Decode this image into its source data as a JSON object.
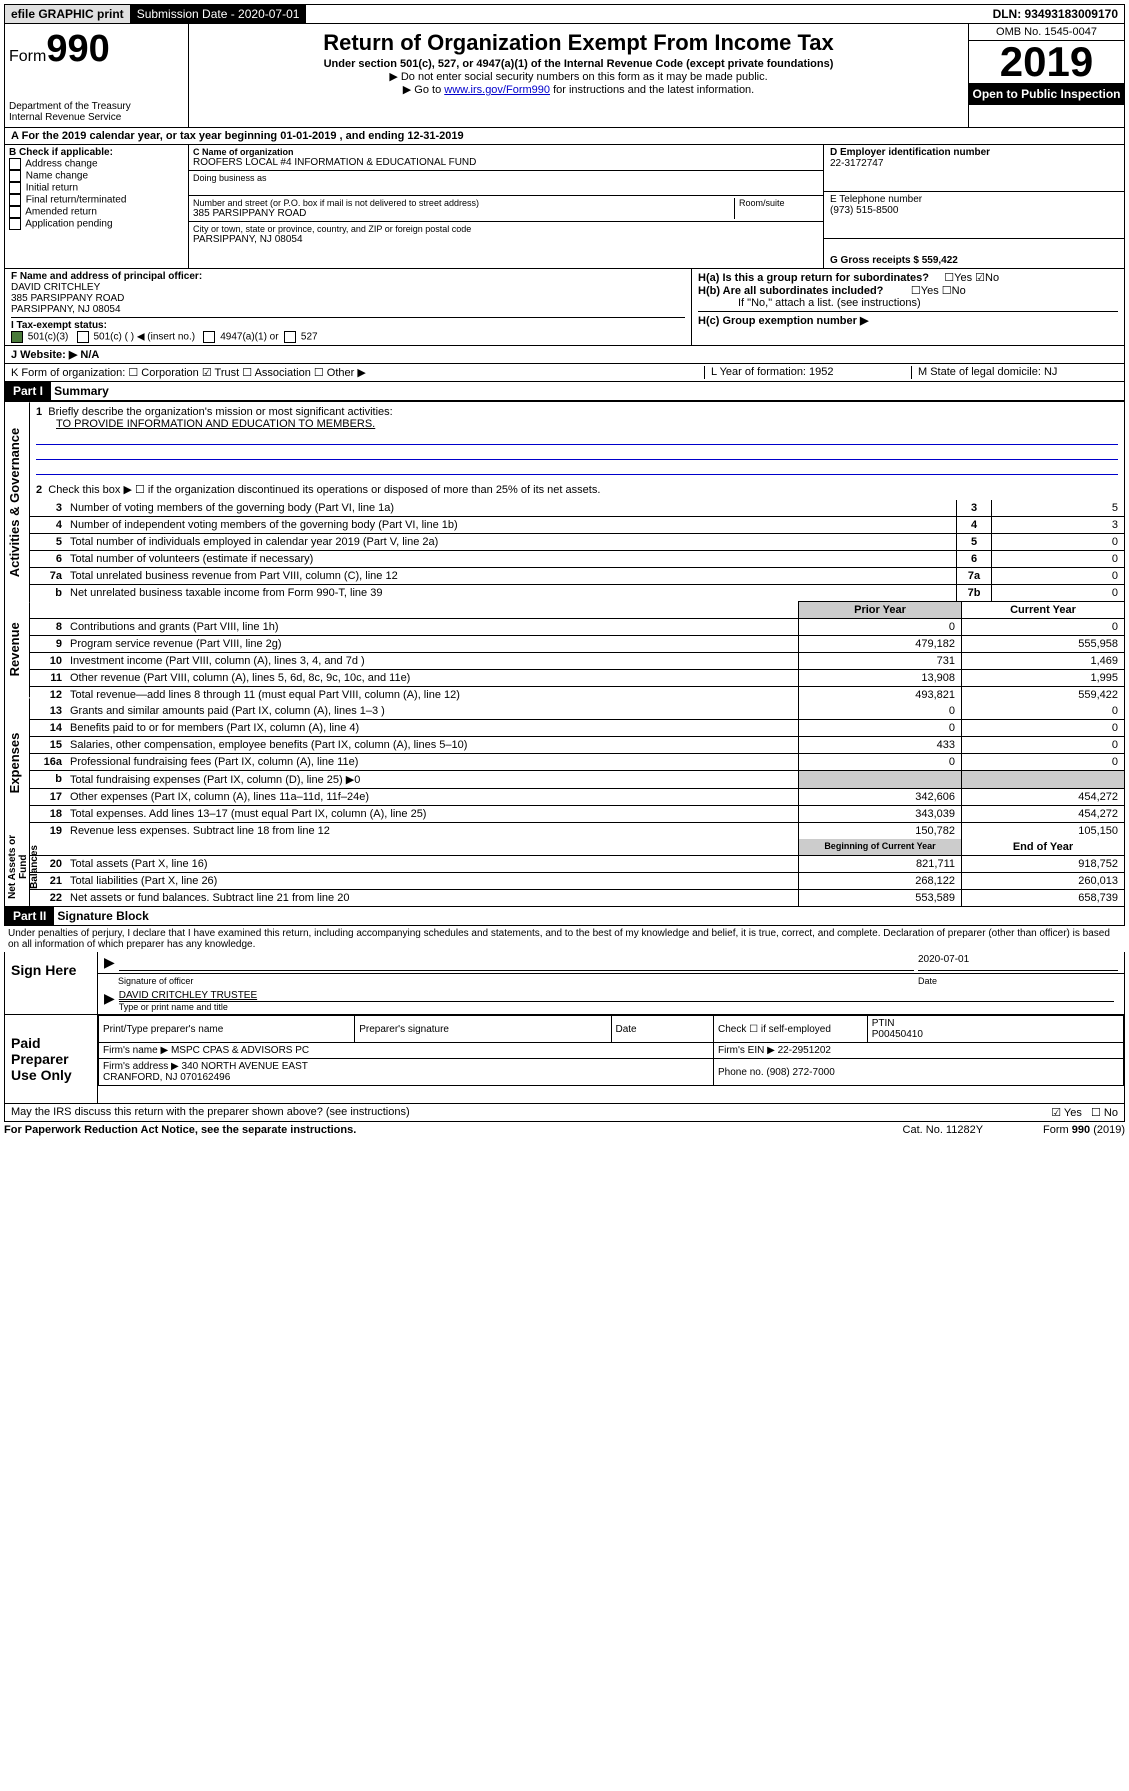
{
  "top": {
    "efile": "efile GRAPHIC print",
    "submission": "Submission Date - 2020-07-01",
    "dln": "DLN: 93493183009170"
  },
  "header": {
    "form": "Form",
    "formnum": "990",
    "dept": "Department of the Treasury\nInternal Revenue Service",
    "title": "Return of Organization Exempt From Income Tax",
    "subtitle": "Under section 501(c), 527, or 4947(a)(1) of the Internal Revenue Code (except private foundations)",
    "note1": "▶ Do not enter social security numbers on this form as it may be made public.",
    "note2_pre": "▶ Go to ",
    "note2_link": "www.irs.gov/Form990",
    "note2_post": " for instructions and the latest information.",
    "omb": "OMB No. 1545-0047",
    "year": "2019",
    "open": "Open to Public Inspection"
  },
  "taxyear": "For the 2019 calendar year, or tax year beginning 01-01-2019    , and ending 12-31-2019",
  "sectionB": {
    "label": "B Check if applicable:",
    "items": [
      "Address change",
      "Name change",
      "Initial return",
      "Final return/terminated",
      "Amended return",
      "Application pending"
    ]
  },
  "sectionC": {
    "name_label": "C Name of organization",
    "name": "ROOFERS LOCAL #4 INFORMATION & EDUCATIONAL FUND",
    "dba_label": "Doing business as",
    "addr_label": "Number and street (or P.O. box if mail is not delivered to street address)",
    "room": "Room/suite",
    "addr": "385 PARSIPPANY ROAD",
    "city_label": "City or town, state or province, country, and ZIP or foreign postal code",
    "city": "PARSIPPANY, NJ  08054"
  },
  "sectionD": {
    "label": "D Employer identification number",
    "ein": "22-3172747",
    "tel_label": "E Telephone number",
    "tel": "(973) 515-8500",
    "gross": "G Gross receipts $ 559,422"
  },
  "sectionF": {
    "label": "F  Name and address of principal officer:",
    "name": "DAVID CRITCHLEY",
    "addr1": "385 PARSIPPANY ROAD",
    "addr2": "PARSIPPANY, NJ  08054"
  },
  "sectionH": {
    "ha": "H(a)  Is this a group return for subordinates?",
    "hb": "H(b)  Are all subordinates included?",
    "hb_note": "If \"No,\" attach a list. (see instructions)",
    "hc": "H(c)  Group exemption number ▶"
  },
  "sectionI": {
    "label": "I   Tax-exempt status:",
    "opt1": "501(c)(3)",
    "opt2": "501(c) (    ) ◀ (insert no.)",
    "opt3": "4947(a)(1) or",
    "opt4": "527"
  },
  "sectionJ": "J   Website: ▶  N/A",
  "sectionK": "K Form of organization:  ☐ Corporation  ☑ Trust  ☐ Association  ☐ Other ▶",
  "sectionL": "L Year of formation: 1952",
  "sectionM": "M State of legal domicile: NJ",
  "part1": {
    "label": "Part I",
    "title": "Summary",
    "line1": "Briefly describe the organization's mission or most significant activities:",
    "mission": "TO PROVIDE INFORMATION AND EDUCATION TO MEMBERS.",
    "line2": "Check this box ▶ ☐  if the organization discontinued its operations or disposed of more than 25% of its net assets.",
    "rows": [
      {
        "n": "3",
        "d": "Number of voting members of the governing body (Part VI, line 1a)",
        "b": "3",
        "v": "5"
      },
      {
        "n": "4",
        "d": "Number of independent voting members of the governing body (Part VI, line 1b)",
        "b": "4",
        "v": "3"
      },
      {
        "n": "5",
        "d": "Total number of individuals employed in calendar year 2019 (Part V, line 2a)",
        "b": "5",
        "v": "0"
      },
      {
        "n": "6",
        "d": "Total number of volunteers (estimate if necessary)",
        "b": "6",
        "v": "0"
      },
      {
        "n": "7a",
        "d": "Total unrelated business revenue from Part VIII, column (C), line 12",
        "b": "7a",
        "v": "0"
      },
      {
        "n": "b",
        "d": "Net unrelated business taxable income from Form 990-T, line 39",
        "b": "7b",
        "v": "0"
      }
    ],
    "revenue_hdr_prior": "Prior Year",
    "revenue_hdr_curr": "Current Year",
    "revenue": [
      {
        "n": "8",
        "d": "Contributions and grants (Part VIII, line 1h)",
        "p": "0",
        "c": "0"
      },
      {
        "n": "9",
        "d": "Program service revenue (Part VIII, line 2g)",
        "p": "479,182",
        "c": "555,958"
      },
      {
        "n": "10",
        "d": "Investment income (Part VIII, column (A), lines 3, 4, and 7d )",
        "p": "731",
        "c": "1,469"
      },
      {
        "n": "11",
        "d": "Other revenue (Part VIII, column (A), lines 5, 6d, 8c, 9c, 10c, and 11e)",
        "p": "13,908",
        "c": "1,995"
      },
      {
        "n": "12",
        "d": "Total revenue—add lines 8 through 11 (must equal Part VIII, column (A), line 12)",
        "p": "493,821",
        "c": "559,422"
      }
    ],
    "expenses": [
      {
        "n": "13",
        "d": "Grants and similar amounts paid (Part IX, column (A), lines 1–3 )",
        "p": "0",
        "c": "0"
      },
      {
        "n": "14",
        "d": "Benefits paid to or for members (Part IX, column (A), line 4)",
        "p": "0",
        "c": "0"
      },
      {
        "n": "15",
        "d": "Salaries, other compensation, employee benefits (Part IX, column (A), lines 5–10)",
        "p": "433",
        "c": "0"
      },
      {
        "n": "16a",
        "d": "Professional fundraising fees (Part IX, column (A), line 11e)",
        "p": "0",
        "c": "0"
      },
      {
        "n": "b",
        "d": "Total fundraising expenses (Part IX, column (D), line 25) ▶0",
        "p": "",
        "c": "",
        "grey": true
      },
      {
        "n": "17",
        "d": "Other expenses (Part IX, column (A), lines 11a–11d, 11f–24e)",
        "p": "342,606",
        "c": "454,272"
      },
      {
        "n": "18",
        "d": "Total expenses. Add lines 13–17 (must equal Part IX, column (A), line 25)",
        "p": "343,039",
        "c": "454,272"
      },
      {
        "n": "19",
        "d": "Revenue less expenses. Subtract line 18 from line 12",
        "p": "150,782",
        "c": "105,150"
      }
    ],
    "net_hdr_b": "Beginning of Current Year",
    "net_hdr_e": "End of Year",
    "netassets": [
      {
        "n": "20",
        "d": "Total assets (Part X, line 16)",
        "p": "821,711",
        "c": "918,752"
      },
      {
        "n": "21",
        "d": "Total liabilities (Part X, line 26)",
        "p": "268,122",
        "c": "260,013"
      },
      {
        "n": "22",
        "d": "Net assets or fund balances. Subtract line 21 from line 20",
        "p": "553,589",
        "c": "658,739"
      }
    ]
  },
  "part2": {
    "label": "Part II",
    "title": "Signature Block",
    "perjury": "Under penalties of perjury, I declare that I have examined this return, including accompanying schedules and statements, and to the best of my knowledge and belief, it is true, correct, and complete. Declaration of preparer (other than officer) is based on all information of which preparer has any knowledge.",
    "sign_here": "Sign Here",
    "sig_officer": "Signature of officer",
    "date": "2020-07-01",
    "date_label": "Date",
    "typed_name": "DAVID CRITCHLEY TRUSTEE",
    "typed_label": "Type or print name and title",
    "paid": "Paid Preparer Use Only",
    "prep_name_label": "Print/Type preparer's name",
    "prep_sig_label": "Preparer's signature",
    "check_self": "Check ☐ if self-employed",
    "ptin_label": "PTIN",
    "ptin": "P00450410",
    "firm_name_label": "Firm's name    ▶",
    "firm_name": "MSPC CPAS & ADVISORS PC",
    "firm_ein": "Firm's EIN ▶ 22-2951202",
    "firm_addr_label": "Firm's address ▶",
    "firm_addr": "340 NORTH AVENUE EAST\nCRANFORD, NJ  070162496",
    "phone": "Phone no. (908) 272-7000",
    "discuss": "May the IRS discuss this return with the preparer shown above? (see instructions)"
  },
  "footer": {
    "left": "For Paperwork Reduction Act Notice, see the separate instructions.",
    "mid": "Cat. No. 11282Y",
    "right": "Form 990 (2019)"
  }
}
